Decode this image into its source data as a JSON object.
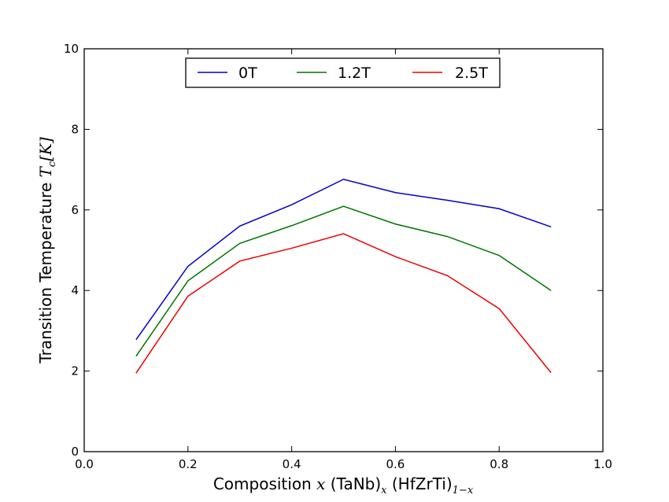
{
  "chart_data": {
    "type": "line",
    "xlabel_text": "Composition",
    "xlabel_var": "x",
    "xlabel_part1": "(TaNb)",
    "xlabel_sub1": "x",
    "xlabel_part2": "(HfZrTi)",
    "xlabel_sub2": "1−x",
    "ylabel_text": "Transition Temperature",
    "ylabel_var": "T",
    "ylabel_sub": "c",
    "ylabel_unit": "[K]",
    "xlim": [
      0.0,
      1.0
    ],
    "ylim": [
      0,
      10
    ],
    "xticks": [
      "0.0",
      "0.2",
      "0.4",
      "0.6",
      "0.8",
      "1.0"
    ],
    "yticks": [
      "0",
      "2",
      "4",
      "6",
      "8",
      "10"
    ],
    "legend_position": "upper center",
    "grid": false,
    "x": [
      0.1,
      0.2,
      0.3,
      0.4,
      0.5,
      0.6,
      0.7,
      0.8,
      0.9
    ],
    "series": [
      {
        "name": "0T",
        "color": "#0000cc",
        "values": [
          2.78,
          4.6,
          5.6,
          6.13,
          6.76,
          6.43,
          6.24,
          6.03,
          5.58
        ]
      },
      {
        "name": "1.2T",
        "color": "#007700",
        "values": [
          2.37,
          4.24,
          5.17,
          5.61,
          6.09,
          5.65,
          5.34,
          4.87,
          4.0
        ]
      },
      {
        "name": "2.5T",
        "color": "#ee0000",
        "values": [
          1.95,
          3.86,
          4.73,
          5.05,
          5.41,
          4.84,
          4.37,
          3.55,
          1.96
        ]
      }
    ]
  }
}
